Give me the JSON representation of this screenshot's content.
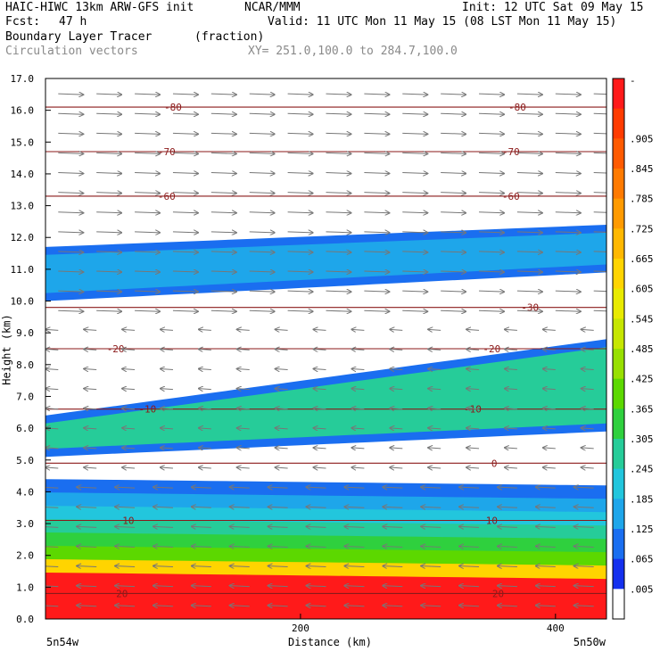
{
  "header": {
    "model": "HAIC-HIWC 13km ARW-GFS init",
    "org": "NCAR/MMM",
    "init": "Init: 12 UTC Sat 09 May 15",
    "fcst_label": "Fcst:",
    "fcst_value": "47 h",
    "valid": "Valid: 11 UTC Mon 11 May 15 (08 LST Mon 11 May 15)",
    "field_name": "Boundary Layer Tracer",
    "field_units": "(fraction)",
    "overlay": "Circulation vectors",
    "xy_range": "XY= 251.0,100.0 to 284.7,100.0"
  },
  "chart_data": {
    "type": "heatmap",
    "xlabel": "Distance (km)",
    "ylabel": "Height (km)",
    "xlim": [
      0,
      440
    ],
    "ylim": [
      0,
      17
    ],
    "x_ticks": [
      {
        "value": 200,
        "label": "200"
      },
      {
        "value": 400,
        "label": "400"
      }
    ],
    "y_ticks": [
      "0.0",
      "1.0",
      "2.0",
      "3.0",
      "4.0",
      "5.0",
      "6.0",
      "7.0",
      "8.0",
      "9.0",
      "10.0",
      "11.0",
      "12.0",
      "13.0",
      "14.0",
      "15.0",
      "16.0",
      "17.0"
    ],
    "x_endpoints": {
      "left": "5n54w",
      "right": "5n50w"
    },
    "colorbar": {
      "levels": [
        "-",
        ".905",
        ".845",
        ".785",
        ".725",
        ".665",
        ".605",
        ".545",
        ".485",
        ".425",
        ".365",
        ".305",
        ".245",
        ".185",
        ".125",
        ".065",
        ".005"
      ],
      "colors": [
        "#ff1a1a",
        "#ff3b00",
        "#ff5a00",
        "#ff7a00",
        "#ff9a00",
        "#ffb800",
        "#ffd400",
        "#e8ea00",
        "#c6e600",
        "#98e000",
        "#5cd800",
        "#2fd03e",
        "#26cc99",
        "#22c6dd",
        "#1ea6ea",
        "#1a6ef0",
        "#1430ee",
        "#ffffff"
      ]
    },
    "temperature_contours": [
      {
        "label": "-80",
        "height_km": 16.1,
        "label_x_km": [
          100,
          370
        ]
      },
      {
        "label": "-70",
        "height_km": 14.7,
        "label_x_km": [
          95,
          365
        ]
      },
      {
        "label": "-60",
        "height_km": 13.3,
        "label_x_km": [
          95,
          365
        ]
      },
      {
        "label": "-30",
        "height_km": 9.8,
        "label_x_km": [
          380
        ]
      },
      {
        "label": "-20",
        "height_km": 8.5,
        "label_x_km": [
          55,
          350
        ]
      },
      {
        "label": "-10",
        "height_km": 6.6,
        "label_x_km": [
          80,
          335
        ]
      },
      {
        "label": "0",
        "height_km": 4.9,
        "label_x_km": [
          352
        ]
      },
      {
        "label": "10",
        "height_km": 3.1,
        "label_x_km": [
          65,
          350
        ]
      },
      {
        "label": "20",
        "height_km": 0.8,
        "label_x_km": [
          60,
          355
        ]
      }
    ],
    "tracer_regions": [
      {
        "name": "upper tracer band",
        "x_km": [
          0,
          440
        ],
        "bottom_km": [
          10.0,
          10.9
        ],
        "top_km": [
          11.7,
          12.4
        ],
        "max_fraction": 0.07
      },
      {
        "name": "mid-level tracer layer",
        "x_km": [
          0,
          440
        ],
        "bottom_km": [
          5.1,
          5.9
        ],
        "top_km": [
          6.4,
          8.8
        ],
        "max_fraction": 0.24
      },
      {
        "name": "boundary layer",
        "x_km": [
          0,
          440
        ],
        "bottom_km": [
          0.0,
          0.0
        ],
        "top_km": [
          4.4,
          4.2
        ],
        "max_fraction": 1.0
      }
    ],
    "vectors": {
      "upper_direction": "eastward",
      "lower_direction": "westward"
    }
  }
}
